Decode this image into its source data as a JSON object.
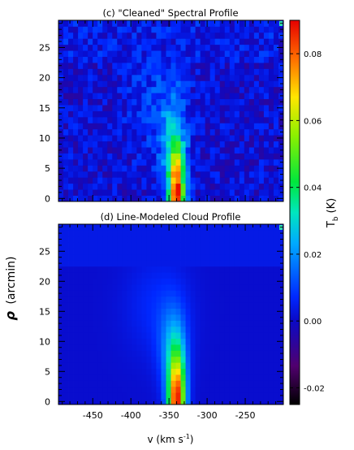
{
  "chart_data": [
    {
      "type": "heatmap",
      "panel_label": "(c)",
      "title": "(c) \"Cleaned\" Spectral Profile",
      "xlabel": "",
      "ylabel": "",
      "xlim": [
        -495,
        -200
      ],
      "ylim": [
        -0.5,
        29.5
      ],
      "y_ticks": [
        0,
        5,
        10,
        15,
        20,
        25
      ],
      "x_ticks": [
        -450,
        -400,
        -350,
        -300,
        -250
      ],
      "grid": false,
      "data_description_units": "Tb (K)",
      "peak": {
        "x": -340,
        "y": 0,
        "value": 0.088
      },
      "clouds": [
        {
          "x": -340,
          "y": 0,
          "sx": 7,
          "sy": 5.5,
          "amp": 0.085
        },
        {
          "x": -345,
          "y": 9,
          "sx": 14,
          "sy": 6,
          "amp": 0.02
        },
        {
          "x": -370,
          "y": 17,
          "sx": 28,
          "sy": 6,
          "amp": 0.007
        }
      ],
      "background": 0.001,
      "noise": 0.007,
      "upper_region_start": 22,
      "upper_region_xmin": -415,
      "upper_region_xmax": -300
    },
    {
      "type": "heatmap",
      "panel_label": "(d)",
      "title": "(d) Line-Modeled Cloud Profile",
      "xlabel": "v (km s⁻¹)",
      "ylabel": "ρ (arcmin)",
      "xlim": [
        -495,
        -200
      ],
      "ylim": [
        -0.5,
        29.5
      ],
      "y_ticks": [
        0,
        5,
        10,
        15,
        20,
        25
      ],
      "x_ticks": [
        -450,
        -400,
        -350,
        -300,
        -250
      ],
      "grid": false,
      "peak": {
        "x": -340,
        "y": 0,
        "value": 0.088
      },
      "clouds": [
        {
          "x": -340,
          "y": 0,
          "sx": 8,
          "sy": 5.5,
          "amp": 0.085
        },
        {
          "x": -345,
          "y": 9,
          "sx": 13,
          "sy": 5,
          "amp": 0.018
        },
        {
          "x": -365,
          "y": 16,
          "sx": 30,
          "sy": 6,
          "amp": 0.006
        }
      ],
      "background": 0.001,
      "noise": 0.0,
      "upper_region_start": 22,
      "upper_region_xmin": -415,
      "upper_region_xmax": -300
    }
  ],
  "colorbar": {
    "label": "T",
    "label_sub": "b",
    "label_unit": "(K)",
    "vmin": -0.025,
    "vmax": 0.09,
    "ticks": [
      -0.02,
      0.0,
      0.02,
      0.04,
      0.06,
      0.08
    ],
    "tick_labels": [
      "-0.02",
      "0.00",
      "0.02",
      "0.04",
      "0.06",
      "0.08"
    ],
    "colormap": "rainbow (black-purple-blue-cyan-green-yellow-red)"
  },
  "axis_text": {
    "ylabel_rho": "ρ",
    "ylabel_unit": "(arcmin)",
    "xlabel_v": "v (km s",
    "xlabel_sup": "-1",
    "xlabel_close": ")"
  }
}
